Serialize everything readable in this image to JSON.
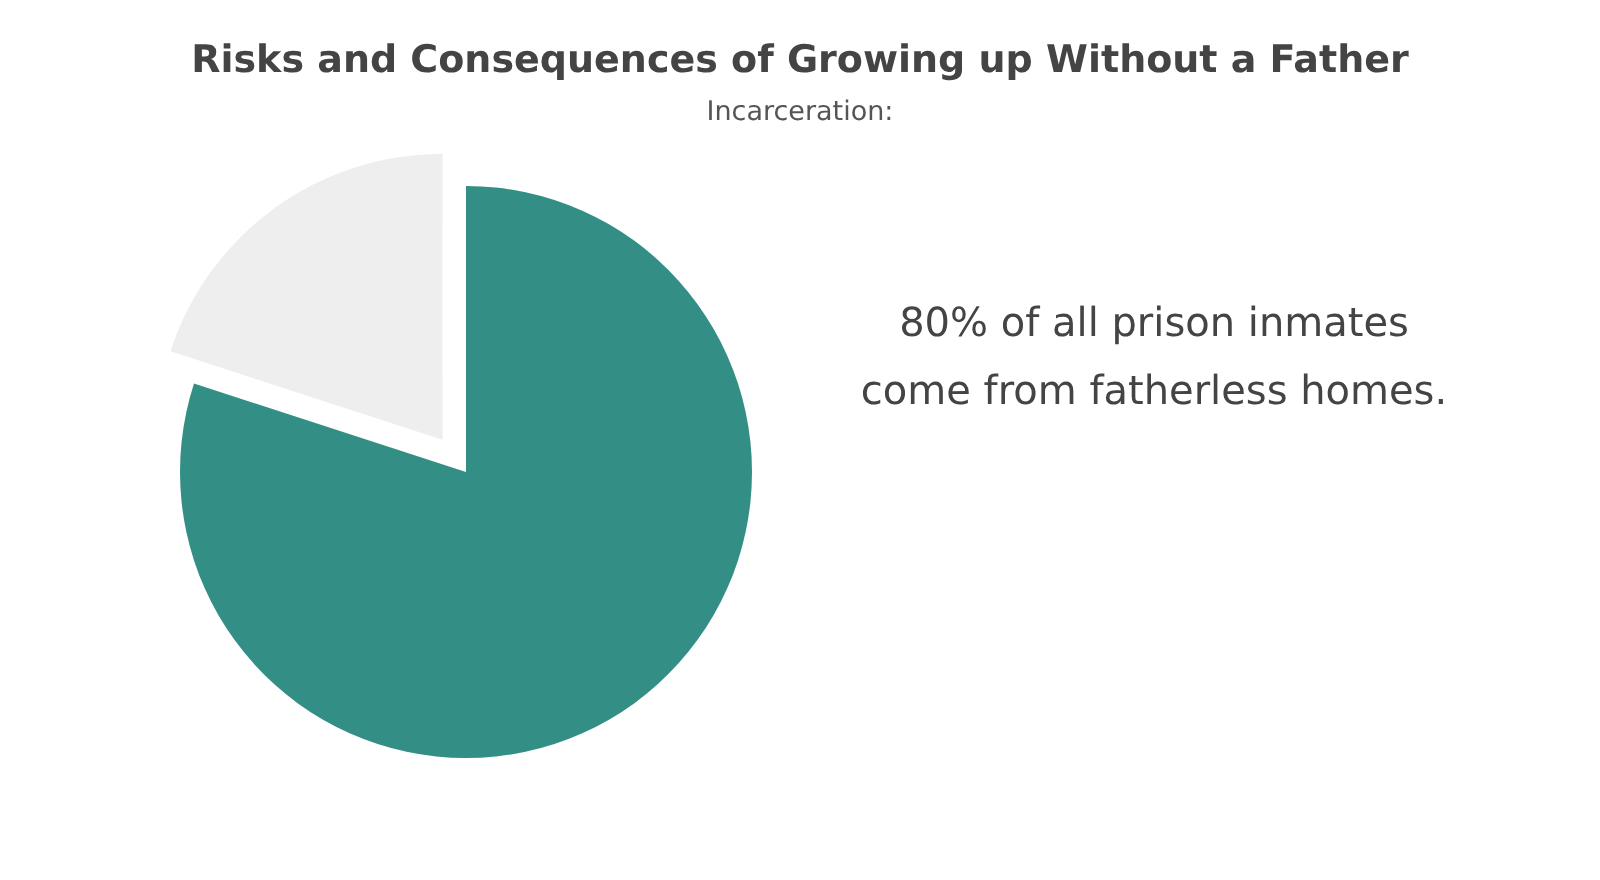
{
  "chart_data": {
    "type": "pie",
    "title": "Risks and Consequences of Growing up Without a Father",
    "subtitle": "Incarceration:",
    "categories": [
      null,
      null
    ],
    "values": [
      80,
      20
    ],
    "colors": [
      "#338f85",
      "#eeeeee"
    ],
    "annotations": [
      "80% of all prison inmates",
      "come from fatherless homes."
    ]
  }
}
